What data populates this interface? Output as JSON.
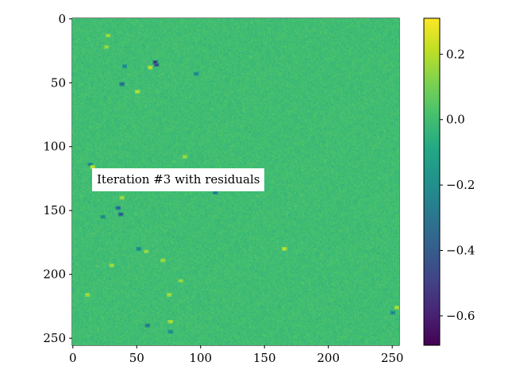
{
  "chart_data": {
    "type": "heatmap",
    "title": "",
    "xlabel": "",
    "ylabel": "",
    "grid_size": [
      256,
      256
    ],
    "x_range": [
      0,
      255
    ],
    "y_range": [
      0,
      255
    ],
    "y_inverted": true,
    "x_ticks": [
      "0",
      "50",
      "100",
      "150",
      "200",
      "250"
    ],
    "x_tick_values": [
      0,
      50,
      100,
      150,
      200,
      250
    ],
    "y_ticks": [
      "0",
      "50",
      "100",
      "150",
      "200",
      "250"
    ],
    "y_tick_values": [
      0,
      50,
      100,
      150,
      200,
      250
    ],
    "colormap": "viridis",
    "colorbar": {
      "vmin": -0.69,
      "vmax": 0.31,
      "ticks": [
        "0.2",
        "0.0",
        "−0.2",
        "−0.4",
        "−0.6"
      ],
      "tick_values": [
        0.2,
        0.0,
        -0.2,
        -0.4,
        -0.6
      ]
    },
    "baseline_value": 0.0,
    "noise_amplitude": 0.05,
    "annotation": "Iteration #3 with residuals",
    "annotation_pos": [
      33,
      128
    ],
    "features": [
      {
        "x": 64,
        "y": 34,
        "value": -0.62
      },
      {
        "x": 65,
        "y": 36,
        "value": -0.55
      },
      {
        "x": 38,
        "y": 51,
        "value": -0.45
      },
      {
        "x": 37,
        "y": 153,
        "value": -0.5
      },
      {
        "x": 35,
        "y": 148,
        "value": -0.45
      },
      {
        "x": 58,
        "y": 240,
        "value": -0.4
      },
      {
        "x": 111,
        "y": 136,
        "value": -0.35
      },
      {
        "x": 40,
        "y": 37,
        "value": -0.3
      },
      {
        "x": 96,
        "y": 43,
        "value": -0.3
      },
      {
        "x": 51,
        "y": 180,
        "value": -0.3
      },
      {
        "x": 250,
        "y": 230,
        "value": -0.3
      },
      {
        "x": 13,
        "y": 114,
        "value": -0.35
      },
      {
        "x": 23,
        "y": 155,
        "value": -0.3
      },
      {
        "x": 76,
        "y": 245,
        "value": -0.3
      },
      {
        "x": 60,
        "y": 38,
        "value": 0.25
      },
      {
        "x": 27,
        "y": 13,
        "value": 0.22
      },
      {
        "x": 50,
        "y": 57,
        "value": 0.25
      },
      {
        "x": 15,
        "y": 116,
        "value": 0.25
      },
      {
        "x": 38,
        "y": 140,
        "value": 0.22
      },
      {
        "x": 165,
        "y": 180,
        "value": 0.25
      },
      {
        "x": 30,
        "y": 193,
        "value": 0.22
      },
      {
        "x": 76,
        "y": 237,
        "value": 0.25
      },
      {
        "x": 75,
        "y": 216,
        "value": 0.22
      },
      {
        "x": 11,
        "y": 216,
        "value": 0.22
      },
      {
        "x": 87,
        "y": 108,
        "value": 0.2
      },
      {
        "x": 57,
        "y": 182,
        "value": 0.2
      },
      {
        "x": 84,
        "y": 205,
        "value": 0.2
      },
      {
        "x": 26,
        "y": 22,
        "value": 0.2
      },
      {
        "x": 253,
        "y": 226,
        "value": 0.22
      },
      {
        "x": 70,
        "y": 189,
        "value": 0.2
      }
    ]
  }
}
